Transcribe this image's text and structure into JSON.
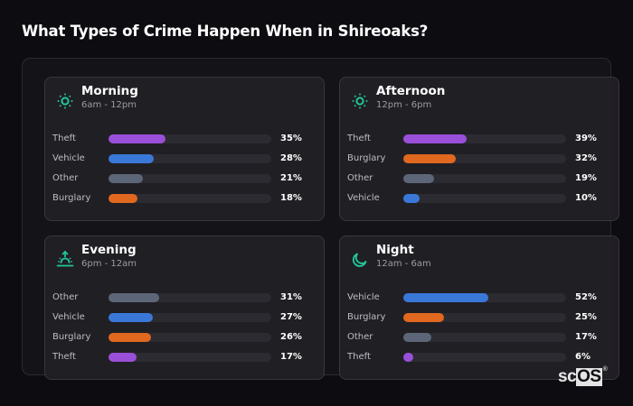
{
  "header": {
    "title": "What Types of Crime Happen When in Shireoaks?"
  },
  "colors": {
    "accent_icon": "#22c59a",
    "theft": "#9a4fd8",
    "vehicle": "#3a78d8",
    "other": "#5d6679",
    "burglary": "#e0681f",
    "track": "#2c2b31"
  },
  "cards": [
    {
      "id": "morning",
      "title": "Morning",
      "subtitle": "6am - 12pm",
      "icon": "sun-icon",
      "rows": [
        {
          "label": "Theft",
          "value": 35,
          "pct": "35%"
        },
        {
          "label": "Vehicle",
          "value": 28,
          "pct": "28%"
        },
        {
          "label": "Other",
          "value": 21,
          "pct": "21%"
        },
        {
          "label": "Burglary",
          "value": 18,
          "pct": "18%"
        }
      ]
    },
    {
      "id": "afternoon",
      "title": "Afternoon",
      "subtitle": "12pm - 6pm",
      "icon": "sun-icon",
      "rows": [
        {
          "label": "Theft",
          "value": 39,
          "pct": "39%"
        },
        {
          "label": "Burglary",
          "value": 32,
          "pct": "32%"
        },
        {
          "label": "Other",
          "value": 19,
          "pct": "19%"
        },
        {
          "label": "Vehicle",
          "value": 10,
          "pct": "10%"
        }
      ]
    },
    {
      "id": "evening",
      "title": "Evening",
      "subtitle": "6pm - 12am",
      "icon": "sunset-icon",
      "rows": [
        {
          "label": "Other",
          "value": 31,
          "pct": "31%"
        },
        {
          "label": "Vehicle",
          "value": 27,
          "pct": "27%"
        },
        {
          "label": "Burglary",
          "value": 26,
          "pct": "26%"
        },
        {
          "label": "Theft",
          "value": 17,
          "pct": "17%"
        }
      ]
    },
    {
      "id": "night",
      "title": "Night",
      "subtitle": "12am - 6am",
      "icon": "moon-icon",
      "rows": [
        {
          "label": "Vehicle",
          "value": 52,
          "pct": "52%"
        },
        {
          "label": "Burglary",
          "value": 25,
          "pct": "25%"
        },
        {
          "label": "Other",
          "value": 17,
          "pct": "17%"
        },
        {
          "label": "Theft",
          "value": 6,
          "pct": "6%"
        }
      ]
    }
  ],
  "logo": {
    "sc": "sc",
    "os": "OS",
    "reg": "®"
  },
  "chart_data": [
    {
      "type": "bar",
      "orientation": "horizontal",
      "title": "Morning",
      "subtitle": "6am - 12pm",
      "categories": [
        "Theft",
        "Vehicle",
        "Other",
        "Burglary"
      ],
      "values": [
        35,
        28,
        21,
        18
      ],
      "unit": "%",
      "xlim": [
        0,
        100
      ]
    },
    {
      "type": "bar",
      "orientation": "horizontal",
      "title": "Afternoon",
      "subtitle": "12pm - 6pm",
      "categories": [
        "Theft",
        "Burglary",
        "Other",
        "Vehicle"
      ],
      "values": [
        39,
        32,
        19,
        10
      ],
      "unit": "%",
      "xlim": [
        0,
        100
      ]
    },
    {
      "type": "bar",
      "orientation": "horizontal",
      "title": "Evening",
      "subtitle": "6pm - 12am",
      "categories": [
        "Other",
        "Vehicle",
        "Burglary",
        "Theft"
      ],
      "values": [
        31,
        27,
        26,
        17
      ],
      "unit": "%",
      "xlim": [
        0,
        100
      ]
    },
    {
      "type": "bar",
      "orientation": "horizontal",
      "title": "Night",
      "subtitle": "12am - 6am",
      "categories": [
        "Vehicle",
        "Burglary",
        "Other",
        "Theft"
      ],
      "values": [
        52,
        25,
        17,
        6
      ],
      "unit": "%",
      "xlim": [
        0,
        100
      ]
    }
  ]
}
